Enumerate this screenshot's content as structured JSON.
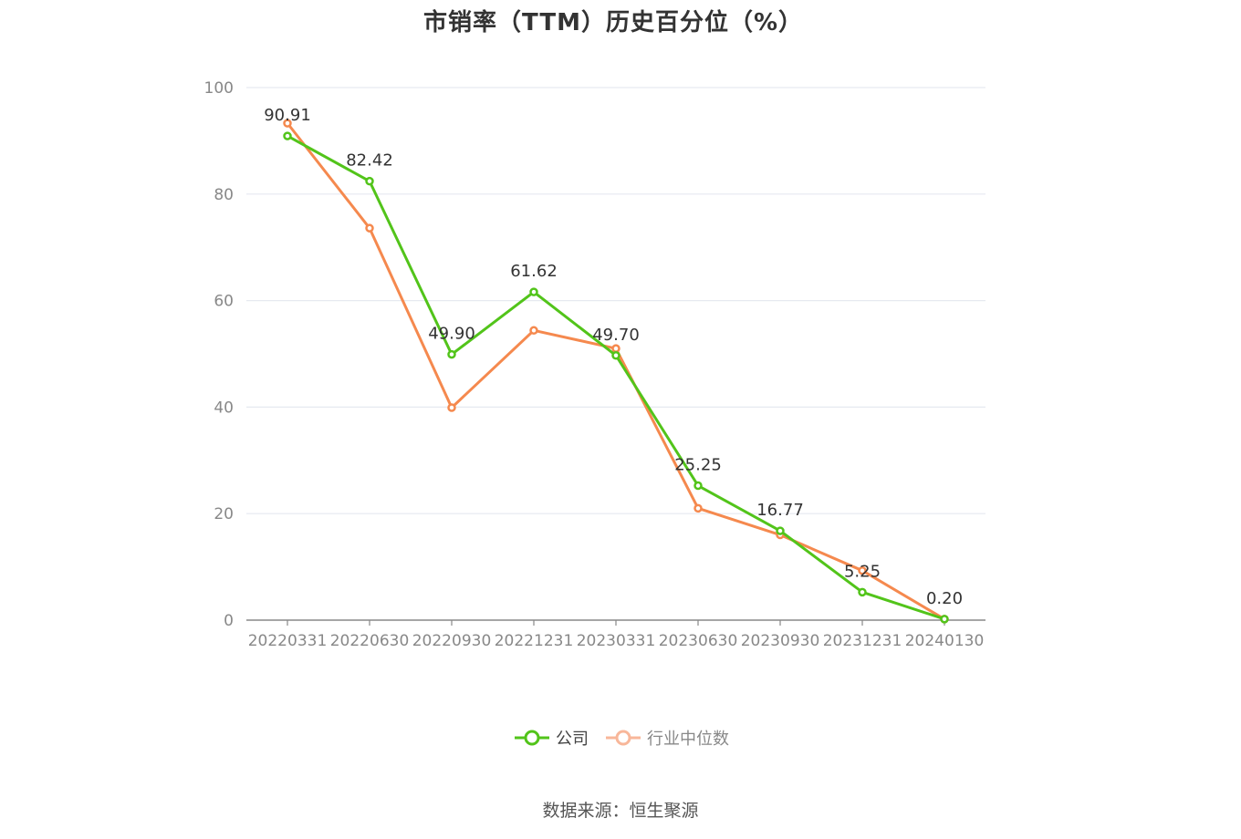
{
  "chart_data": {
    "type": "line",
    "title": "市销率（TTM）历史百分位（%）",
    "x": [
      "20220331",
      "20220630",
      "20220930",
      "20221231",
      "20230331",
      "20230630",
      "20230930",
      "20231231",
      "20240130"
    ],
    "ylim": [
      0,
      100
    ],
    "yticks": [
      0,
      20,
      40,
      60,
      80,
      100
    ],
    "grid": true,
    "legend_position": "bottom",
    "series": [
      {
        "name": "公司",
        "color": "#52c41a",
        "values": [
          90.91,
          82.42,
          49.9,
          61.62,
          49.7,
          25.25,
          16.77,
          5.25,
          0.2
        ],
        "labels": [
          "90.91",
          "82.42",
          "49.90",
          "61.62",
          "49.70",
          "25.25",
          "16.77",
          "5.25",
          "0.20"
        ]
      },
      {
        "name": "行业中位数",
        "color": "#f5894e",
        "values": [
          93.3,
          73.6,
          39.9,
          54.4,
          51.0,
          21.0,
          16.0,
          9.3,
          0.2
        ]
      }
    ]
  },
  "legend": {
    "company": "公司",
    "industry": "行业中位数"
  },
  "colors": {
    "company_legend": "#52c41a",
    "industry_legend": "#f8b79a",
    "grid": "#e6e9f0",
    "axis": "#888888"
  },
  "source": "数据来源：恒生聚源"
}
